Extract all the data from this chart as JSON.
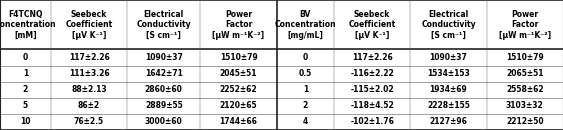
{
  "left_headers": [
    "F4TCNQ\nConcentration\n[mM]",
    "Seebeck\nCoefficient\n[μV K⁻¹]",
    "Electrical\nConductivity\n[S cm⁻¹]",
    "Power\nFactor\n[μW m⁻¹K⁻²]"
  ],
  "right_headers": [
    "BV\nConcentration\n[mg/mL]",
    "Seebeck\nCoefficient\n[μV K⁻¹]",
    "Electrical\nConductivity\n[S cm⁻¹]",
    "Power\nFactor\n[μW m⁻¹K⁻²]"
  ],
  "left_data": [
    [
      "0",
      "117±2.26",
      "1090±37",
      "1510±79"
    ],
    [
      "1",
      "111±3.26",
      "1642±71",
      "2045±51"
    ],
    [
      "2",
      "88±2.13",
      "2860±60",
      "2252±62"
    ],
    [
      "5",
      "86±2",
      "2889±55",
      "2120±65"
    ],
    [
      "10",
      "76±2.5",
      "3000±60",
      "1744±66"
    ]
  ],
  "right_data": [
    [
      "0",
      "117±2.26",
      "1090±37",
      "1510±79"
    ],
    [
      "0.5",
      "-116±2.22",
      "1534±153",
      "2065±51"
    ],
    [
      "1",
      "-115±2.02",
      "1934±69",
      "2558±62"
    ],
    [
      "2",
      "-118±4.52",
      "2228±155",
      "3103±32"
    ],
    [
      "4",
      "-102±1.76",
      "2127±96",
      "2212±50"
    ]
  ],
  "bg_color": "#ffffff",
  "font_size": 5.5,
  "header_font_size": 5.5,
  "line_color": "#555555",
  "thick_line_color": "#222222"
}
